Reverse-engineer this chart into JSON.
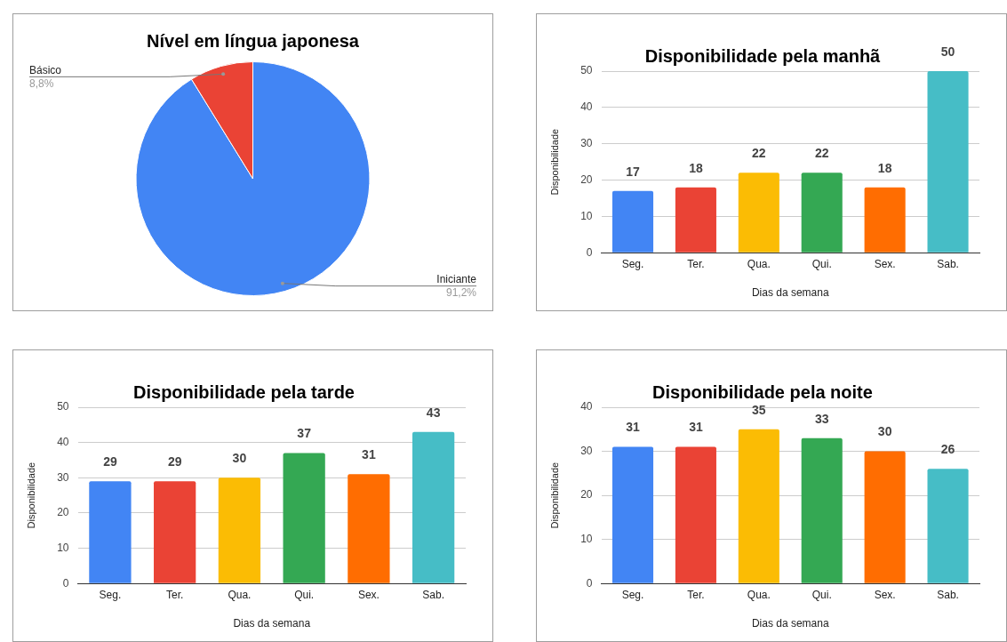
{
  "chart_data": [
    {
      "type": "pie",
      "title": "Nível em língua japonesa",
      "categories": [
        "Iniciante",
        "Básico"
      ],
      "values": [
        91.2,
        8.8
      ],
      "colors": [
        "#4285f4",
        "#ea4335"
      ],
      "value_labels": [
        "91,2%",
        "8,8%"
      ],
      "legend": false
    },
    {
      "type": "bar",
      "title": "Disponibilidade pela manhã",
      "xlabel": "Dias da semana",
      "ylabel": "Disponibilidade",
      "categories": [
        "Seg.",
        "Ter.",
        "Qua.",
        "Qui.",
        "Sex.",
        "Sab."
      ],
      "values": [
        17,
        18,
        22,
        22,
        18,
        50
      ],
      "colors": [
        "#4285f4",
        "#ea4335",
        "#fbbc04",
        "#34a853",
        "#ff6d01",
        "#46bdc6"
      ],
      "ylim": [
        0,
        50
      ],
      "yticks": [
        0,
        10,
        20,
        30,
        40,
        50
      ],
      "grid": "y",
      "legend": false,
      "data_labels": true
    },
    {
      "type": "bar",
      "title": "Disponibilidade pela tarde",
      "xlabel": "Dias da semana",
      "ylabel": "Disponibilidade",
      "categories": [
        "Seg.",
        "Ter.",
        "Qua.",
        "Qui.",
        "Sex.",
        "Sab."
      ],
      "values": [
        29,
        29,
        30,
        37,
        31,
        43
      ],
      "colors": [
        "#4285f4",
        "#ea4335",
        "#fbbc04",
        "#34a853",
        "#ff6d01",
        "#46bdc6"
      ],
      "ylim": [
        0,
        50
      ],
      "yticks": [
        0,
        10,
        20,
        30,
        40,
        50
      ],
      "grid": "y",
      "legend": false,
      "data_labels": true
    },
    {
      "type": "bar",
      "title": "Disponibilidade pela noite",
      "xlabel": "Dias da semana",
      "ylabel": "Disponibilidade",
      "categories": [
        "Seg.",
        "Ter.",
        "Qua.",
        "Qui.",
        "Sex.",
        "Sab."
      ],
      "values": [
        31,
        31,
        35,
        33,
        30,
        26
      ],
      "colors": [
        "#4285f4",
        "#ea4335",
        "#fbbc04",
        "#34a853",
        "#ff6d01",
        "#46bdc6"
      ],
      "ylim": [
        0,
        40
      ],
      "yticks": [
        0,
        10,
        20,
        30,
        40
      ],
      "grid": "y",
      "legend": false,
      "data_labels": true
    }
  ]
}
